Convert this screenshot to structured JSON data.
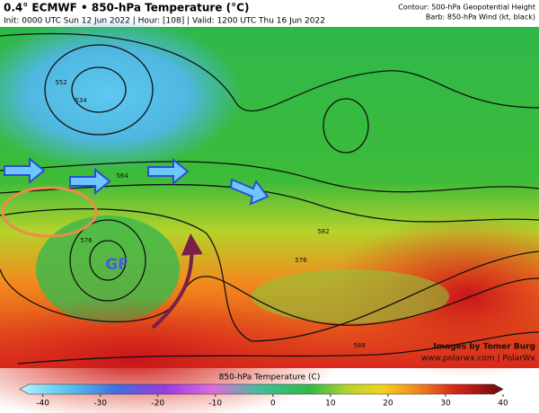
{
  "header": {
    "title": "0.4° ECMWF • 850-hPa Temperature (°C)",
    "subtitle": "Init: 0000 UTC Sun 12 Jun 2022 | Hour: [108] | Valid: 1200 UTC Thu 16 Jun 2022",
    "contour_note": "Contour: 500-hPa Geopotential Height",
    "barb_note": "Barb: 850-hPa Wind (kt, black)"
  },
  "map": {
    "contour_labels": [
      "534",
      "552",
      "564",
      "576",
      "576",
      "582",
      "588"
    ],
    "annotation": "GF"
  },
  "credits": {
    "author": "Images by Tomer Burg",
    "site": "www.polarwx.com | PolarWx"
  },
  "colorbar": {
    "label": "850-hPa Temperature (C)",
    "range": [
      -44,
      40
    ],
    "ticks": [
      -40,
      -30,
      -20,
      -10,
      0,
      10,
      20,
      30,
      40
    ]
  }
}
